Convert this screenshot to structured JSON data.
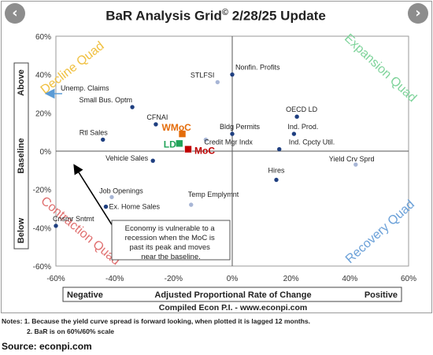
{
  "nav": {
    "prev_icon": "‹",
    "next_icon": "›"
  },
  "title_parts": [
    "BaR Analysis Grid",
    "©",
    " 2/28/25 Update"
  ],
  "quads": {
    "decline": "Decline Quad",
    "expansion": "Expansion Quad",
    "contraction": "Contraction Quad",
    "recovery": "Recovery Quad"
  },
  "side_labels": {
    "above": "Above",
    "baseline": "Baseline",
    "below": "Below"
  },
  "bottom_bar": {
    "negative": "Negative",
    "middle": "Adjusted Proportional Rate of Change",
    "positive": "Positive"
  },
  "compiled": "Compiled Econ P.I. - www.econpi.com",
  "annotation_lines": [
    "Economy is vulnerable to a",
    "recession when the MoC is",
    "past its peak and moves",
    "near the baseline."
  ],
  "notes": {
    "line1": "Notes: 1. Because the yield curve spread is forward looking, when plotted it is lagged 12 months.",
    "line2": "2. BaR is on 60%/60% scale"
  },
  "source": "Source: econpi.com",
  "colors": {
    "point": "#1f3f80",
    "point_light": "#a8b6d6",
    "moc": "#c00000",
    "wmoc": "#e46c0a",
    "ld": "#22a35a",
    "decline": "#f0c040",
    "expansion": "#7ed39a",
    "contraction": "#e07070",
    "recovery": "#6aa0d8",
    "arrow": "#5b9bd5"
  },
  "chart_data": {
    "type": "scatter",
    "xlim": [
      -60,
      60
    ],
    "ylim": [
      -60,
      60
    ],
    "x_ticks": [
      "-60%",
      "-40%",
      "-20%",
      "0%",
      "20%",
      "40%",
      "60%"
    ],
    "y_ticks": [
      "60%",
      "40%",
      "20%",
      "0%",
      "-20%",
      "-40%",
      "-60%"
    ],
    "points": [
      {
        "label": "Nonfin. Profits",
        "x": 0,
        "y": 40,
        "style": "normal"
      },
      {
        "label": "STLFSI",
        "x": -5,
        "y": 36,
        "style": "light"
      },
      {
        "label": "Unemp. Claims",
        "x": -64,
        "y": 30,
        "style": "arrow"
      },
      {
        "label": "Small Bus. Optm",
        "x": -34,
        "y": 23,
        "style": "normal"
      },
      {
        "label": "OECD LD",
        "x": 22,
        "y": 18,
        "style": "normal"
      },
      {
        "label": "CFNAI",
        "x": -26,
        "y": 14,
        "style": "normal"
      },
      {
        "label": "Ind. Prod.",
        "x": 21,
        "y": 9,
        "style": "normal"
      },
      {
        "label": "Bldg Permits",
        "x": 0,
        "y": 9,
        "style": "normal"
      },
      {
        "label": "Rtl Sales",
        "x": -44,
        "y": 6,
        "style": "normal"
      },
      {
        "label": "Credit Mgr Indx",
        "x": -9,
        "y": 6,
        "style": "light"
      },
      {
        "label": "Ind. Cpcty Util.",
        "x": 16,
        "y": 1,
        "style": "normal"
      },
      {
        "label": "Vehicle Sales",
        "x": -27,
        "y": -5,
        "style": "normal"
      },
      {
        "label": "Yield Crv Sprd",
        "x": 42,
        "y": -7,
        "style": "light"
      },
      {
        "label": "Hires",
        "x": 15,
        "y": -15,
        "style": "normal"
      },
      {
        "label": "Job Openings",
        "x": -41,
        "y": -24,
        "style": "light"
      },
      {
        "label": "Temp Emplymnt",
        "x": -14,
        "y": -28,
        "style": "light"
      },
      {
        "label": "Ex. Home Sales",
        "x": -43,
        "y": -29,
        "style": "normal"
      },
      {
        "label": "Cnsmr Sntmt",
        "x": -60,
        "y": -39,
        "style": "normal"
      }
    ],
    "markers": [
      {
        "label": "WMoC",
        "x": -17,
        "y": 9
      },
      {
        "label": "LD",
        "x": -18,
        "y": 4
      },
      {
        "label": "MoC",
        "x": -15,
        "y": 1
      }
    ]
  }
}
